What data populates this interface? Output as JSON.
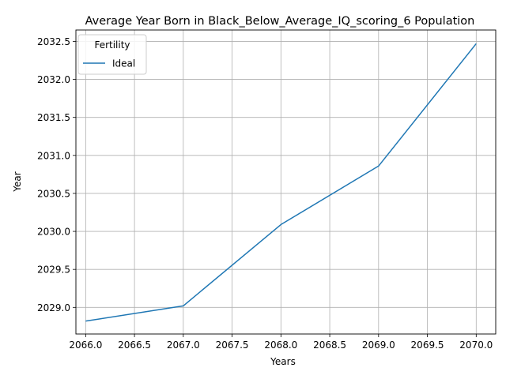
{
  "chart_data": {
    "type": "line",
    "title": "Average Year Born in Black_Below_Average_IQ_scoring_6 Population",
    "xlabel": "Years",
    "ylabel": "Year",
    "x": [
      2066,
      2067,
      2068,
      2069,
      2070
    ],
    "series": [
      {
        "name": "Ideal",
        "values": [
          2028.82,
          2029.02,
          2030.09,
          2030.86,
          2032.47
        ]
      }
    ],
    "xlim": [
      2065.9,
      2070.2
    ],
    "ylim": [
      2028.65,
      2032.65
    ],
    "x_ticks": [
      "2066.0",
      "2066.5",
      "2067.0",
      "2067.5",
      "2068.0",
      "2068.5",
      "2069.0",
      "2069.5",
      "2070.0"
    ],
    "y_ticks": [
      "2029.0",
      "2029.5",
      "2030.0",
      "2030.5",
      "2031.0",
      "2031.5",
      "2032.0",
      "2032.5"
    ],
    "legend": {
      "title": "Fertility",
      "placement": "top-left"
    },
    "grid": true,
    "line_color": "#1f77b4"
  }
}
